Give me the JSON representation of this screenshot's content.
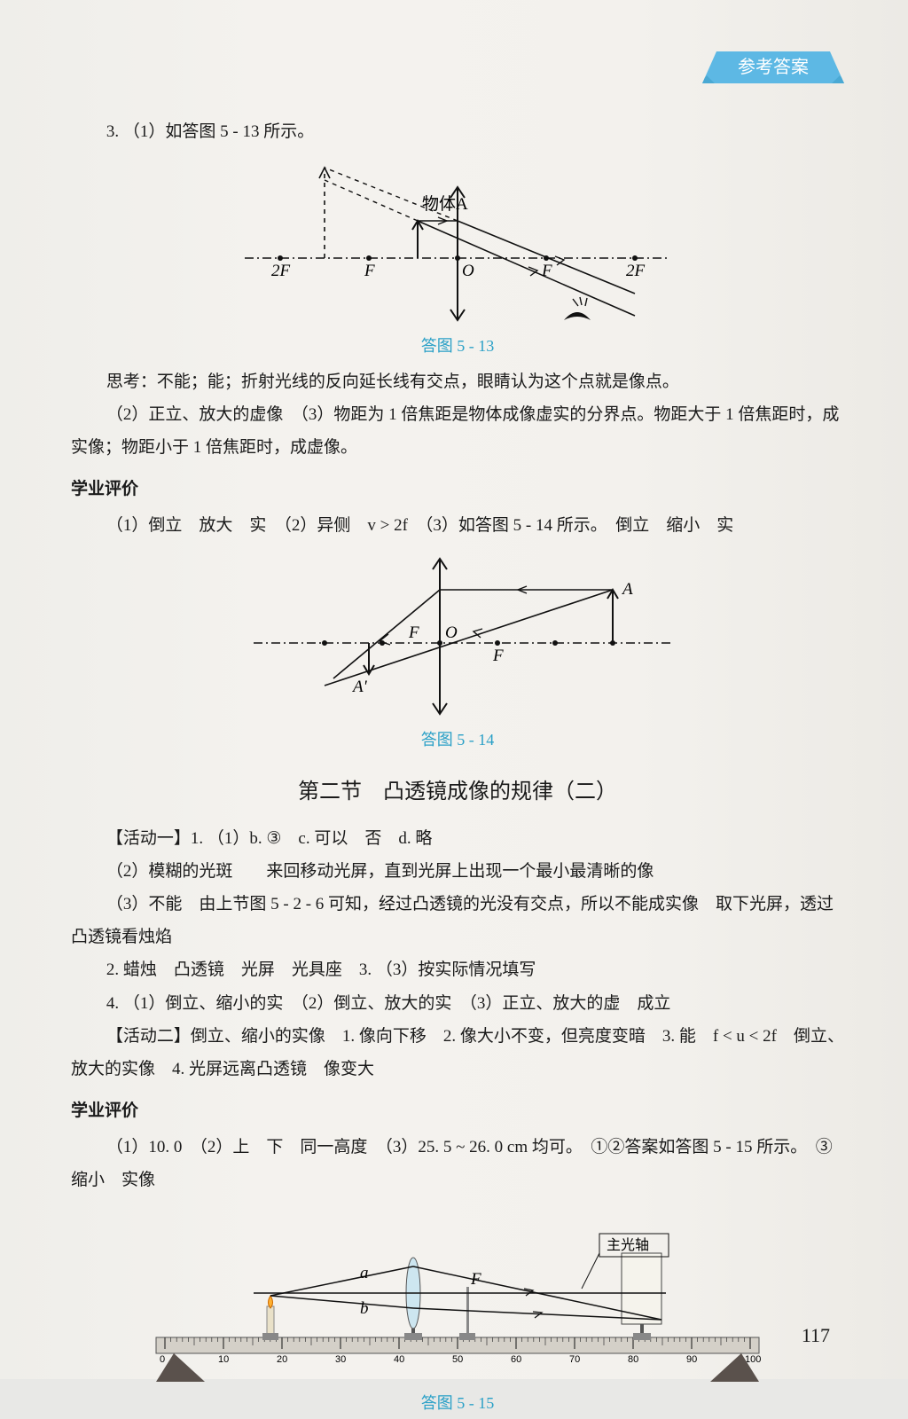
{
  "header": {
    "tab": "参考答案"
  },
  "q3": {
    "line1": "3. （1）如答图 5 - 13 所示。"
  },
  "fig513": {
    "caption": "答图 5 - 13",
    "labels": {
      "minus2F": "2F",
      "minusF": "F",
      "O": "O",
      "F": "F",
      "plus2F": "2F",
      "A": "物体A"
    },
    "colors": {
      "axis": "#111",
      "ray": "#111",
      "cap": "#2aa0c7"
    }
  },
  "think": {
    "p1": "思考：不能；能；折射光线的反向延长线有交点，眼睛认为这个点就是像点。",
    "p2": "（2）正立、放大的虚像　（3）物距为 1 倍焦距是物体成像虚实的分界点。物距大于 1 倍焦距时，成实像；物距小于 1 倍焦距时，成虚像。"
  },
  "eval1": {
    "head": "学业评价",
    "line": "（1）倒立　放大　实　（2）异侧　v > 2f　（3）如答图 5 - 14 所示。　倒立　缩小　实"
  },
  "fig514": {
    "caption": "答图 5 - 14",
    "labels": {
      "Fneg": "F",
      "O": "O",
      "F": "F",
      "A": "A",
      "Ap": "A'"
    }
  },
  "sect2": {
    "title": "第二节　凸透镜成像的规律（二）",
    "act1": "【活动一】1. （1）b. ③　c. 可以　否　d. 略",
    "p2": "（2）模糊的光斑　　来回移动光屏，直到光屏上出现一个最小最清晰的像",
    "p3": "（3）不能　由上节图 5 - 2 - 6 可知，经过凸透镜的光没有交点，所以不能成实像　取下光屏，透过凸透镜看烛焰",
    "p4": "2. 蜡烛　凸透镜　光屏　光具座　3. （3）按实际情况填写",
    "p5": "4. （1）倒立、缩小的实　（2）倒立、放大的实　（3）正立、放大的虚　成立",
    "act2": "【活动二】倒立、缩小的实像　1. 像向下移　2. 像大小不变，但亮度变暗　3. 能　f < u < 2f　倒立、放大的实像　4. 光屏远离凸透镜　像变大"
  },
  "eval2": {
    "head": "学业评价",
    "line1": "（1）10. 0　（2）上　下　同一高度　（3）25. 5 ~ 26. 0 cm 均可。　①②答案如答图 5 - 15 所示。　③缩小　实像"
  },
  "fig515": {
    "caption": "答图 5 - 15",
    "axisLabel": "主光轴",
    "a": "a",
    "b": "b",
    "F": "F",
    "ruler": [
      "0",
      "10",
      "20",
      "30",
      "40",
      "50",
      "60",
      "70",
      "80",
      "90",
      "100"
    ]
  },
  "pageNum": "117"
}
